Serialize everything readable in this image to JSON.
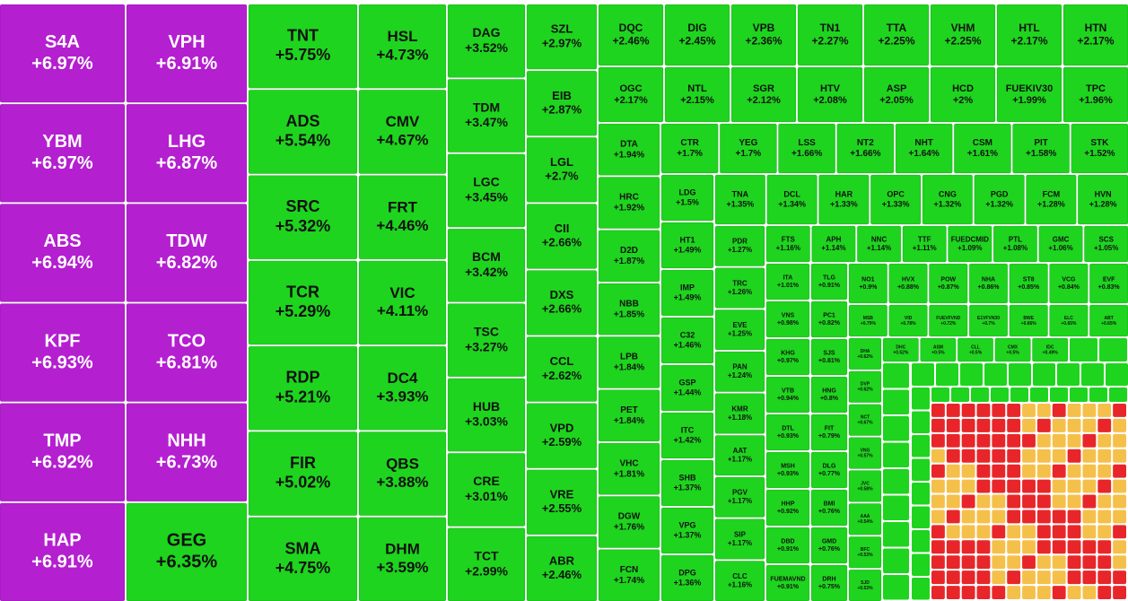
{
  "chart_data": {
    "type": "treemap",
    "series": [
      {
        "color": "#b41fd0",
        "text_color": "#ffffff",
        "categories": [
          "S4A",
          "YBM",
          "ABS",
          "KPF",
          "TMP",
          "HAP",
          "VPH",
          "LHG",
          "TDW",
          "TCO",
          "NHH"
        ],
        "values": [
          6.97,
          6.97,
          6.94,
          6.93,
          6.92,
          6.91,
          6.91,
          6.87,
          6.82,
          6.81,
          6.73
        ],
        "value_labels": [
          "+6.97%",
          "+6.97%",
          "+6.94%",
          "+6.93%",
          "+6.92%",
          "+6.91%",
          "+6.91%",
          "+6.87%",
          "+6.82%",
          "+6.81%",
          "+6.73%"
        ]
      },
      {
        "color": "#1ed41e",
        "text_color": "#111111",
        "categories": [
          "GEG",
          "TNT",
          "ADS",
          "SRC",
          "TCR",
          "RDP",
          "FIR",
          "SMA",
          "HSL",
          "CMV",
          "FRT",
          "VIC",
          "DC4",
          "QBS",
          "DHM",
          "DAG",
          "TDM",
          "LGC",
          "BCM",
          "TSC",
          "HUB",
          "CRE",
          "TCT",
          "SZL",
          "EIB",
          "LGL",
          "CII",
          "DXS",
          "CCL",
          "VPD",
          "VRE",
          "ABR",
          "DQC",
          "DIG",
          "VPB",
          "TN1",
          "TTA",
          "VHM",
          "HTL",
          "HTN",
          "OGC",
          "NTL",
          "SGR",
          "HTV",
          "ASP",
          "HCD",
          "FUEKIV30",
          "TPC",
          "DTA",
          "HRC",
          "D2D",
          "NBB",
          "LPB",
          "PET",
          "VHC",
          "DGW",
          "FCN",
          "CTR",
          "YEG",
          "LSS",
          "NT2",
          "NHT",
          "CSM",
          "PIT",
          "STK",
          "LDG",
          "HT1",
          "IMP",
          "C32",
          "GSP",
          "ITC",
          "SHB",
          "VPG",
          "DPG",
          "TNA",
          "DCL",
          "HAR",
          "OPC",
          "CNG",
          "PGD",
          "FCM",
          "HVN",
          "PDR",
          "TRC",
          "EVE",
          "PAN",
          "KMR",
          "AAT",
          "PGV",
          "SIP",
          "CLC",
          "FTS",
          "APH",
          "NNC",
          "TTF",
          "FUEDCMID",
          "PTL",
          "GMC",
          "SCS",
          "ITA",
          "VNS",
          "KHG",
          "VTB",
          "DTL",
          "MSH",
          "HHP",
          "DBD",
          "FUEMAVND",
          "TLG",
          "PC1",
          "SJS",
          "HNG",
          "FIT",
          "DLG",
          "BMI",
          "GMD",
          "DRH",
          "NO1",
          "HVX",
          "POW",
          "NHA",
          "ST8",
          "VCG",
          "EVF",
          "MSB",
          "VID",
          "FUEVFVND",
          "E1VFVN30",
          "BWE",
          "ELC",
          "ABT",
          "DHA",
          "DVP",
          "NCT",
          "VNG",
          "JVC",
          "AAA",
          "BFC",
          "SJD",
          "DHC",
          "ASM",
          "CLL",
          "CMX",
          "IDC"
        ],
        "values": [
          6.35,
          5.75,
          5.54,
          5.32,
          5.29,
          5.21,
          5.02,
          4.75,
          4.73,
          4.67,
          4.46,
          4.11,
          3.93,
          3.88,
          3.59,
          3.52,
          3.47,
          3.45,
          3.42,
          3.27,
          3.03,
          3.01,
          2.99,
          2.97,
          2.87,
          2.7,
          2.66,
          2.66,
          2.62,
          2.59,
          2.55,
          2.46,
          2.46,
          2.45,
          2.36,
          2.27,
          2.25,
          2.25,
          2.17,
          2.17,
          2.17,
          2.15,
          2.12,
          2.08,
          2.05,
          2,
          1.99,
          1.96,
          1.94,
          1.92,
          1.87,
          1.85,
          1.84,
          1.84,
          1.81,
          1.76,
          1.74,
          1.7,
          1.7,
          1.66,
          1.66,
          1.64,
          1.61,
          1.58,
          1.52,
          1.5,
          1.49,
          1.49,
          1.46,
          1.44,
          1.42,
          1.37,
          1.37,
          1.36,
          1.35,
          1.34,
          1.33,
          1.33,
          1.32,
          1.32,
          1.28,
          1.28,
          1.27,
          1.26,
          1.25,
          1.24,
          1.18,
          1.17,
          1.17,
          1.17,
          1.16,
          1.16,
          1.14,
          1.14,
          1.11,
          1.09,
          1.08,
          1.06,
          1.05,
          1.01,
          0.98,
          0.97,
          0.94,
          0.93,
          0.93,
          0.92,
          0.91,
          0.91,
          0.91,
          0.82,
          0.81,
          0.8,
          0.79,
          0.77,
          0.76,
          0.76,
          0.75,
          0.9,
          0.88,
          0.87,
          0.86,
          0.85,
          0.84,
          0.83,
          0.79,
          0.78,
          0.72,
          0.7,
          0.66,
          0.65,
          0.65,
          0.62,
          0.62,
          0.67,
          0.57,
          0.58,
          0.54,
          0.53,
          0.53,
          0.52,
          0.5,
          0.5,
          0.5,
          0.49
        ],
        "value_labels": [
          "+6.35%",
          "+5.75%",
          "+5.54%",
          "+5.32%",
          "+5.29%",
          "+5.21%",
          "+5.02%",
          "+4.75%",
          "+4.73%",
          "+4.67%",
          "+4.46%",
          "+4.11%",
          "+3.93%",
          "+3.88%",
          "+3.59%",
          "+3.52%",
          "+3.47%",
          "+3.45%",
          "+3.42%",
          "+3.27%",
          "+3.03%",
          "+3.01%",
          "+2.99%",
          "+2.97%",
          "+2.87%",
          "+2.7%",
          "+2.66%",
          "+2.66%",
          "+2.62%",
          "+2.59%",
          "+2.55%",
          "+2.46%",
          "+2.46%",
          "+2.45%",
          "+2.36%",
          "+2.27%",
          "+2.25%",
          "+2.25%",
          "+2.17%",
          "+2.17%",
          "+2.17%",
          "+2.15%",
          "+2.12%",
          "+2.08%",
          "+2.05%",
          "+2%",
          "+1.99%",
          "+1.96%",
          "+1.94%",
          "+1.92%",
          "+1.87%",
          "+1.85%",
          "+1.84%",
          "+1.84%",
          "+1.81%",
          "+1.76%",
          "+1.74%",
          "+1.7%",
          "+1.7%",
          "+1.66%",
          "+1.66%",
          "+1.64%",
          "+1.61%",
          "+1.58%",
          "+1.52%",
          "+1.5%",
          "+1.49%",
          "+1.49%",
          "+1.46%",
          "+1.44%",
          "+1.42%",
          "+1.37%",
          "+1.37%",
          "+1.36%",
          "+1.35%",
          "+1.34%",
          "+1.33%",
          "+1.33%",
          "+1.32%",
          "+1.32%",
          "+1.28%",
          "+1.28%",
          "+1.27%",
          "+1.26%",
          "+1.25%",
          "+1.24%",
          "+1.18%",
          "+1.17%",
          "+1.17%",
          "+1.17%",
          "+1.16%",
          "+1.16%",
          "+1.14%",
          "+1.14%",
          "+1.11%",
          "+1.09%",
          "+1.08%",
          "+1.06%",
          "+1.05%",
          "+1.01%",
          "+0.98%",
          "+0.97%",
          "+0.94%",
          "+0.93%",
          "+0.93%",
          "+0.92%",
          "+0.91%",
          "+0.91%",
          "+0.91%",
          "+0.82%",
          "+0.81%",
          "+0.8%",
          "+0.79%",
          "+0.77%",
          "+0.76%",
          "+0.76%",
          "+0.75%",
          "+0.9%",
          "+0.88%",
          "+0.87%",
          "+0.86%",
          "+0.85%",
          "+0.84%",
          "+0.83%",
          "+0.79%",
          "+0.78%",
          "+0.72%",
          "+0.7%",
          "+0.66%",
          "+0.65%",
          "+0.65%",
          "+0.62%",
          "+0.62%",
          "+0.67%",
          "+0.57%",
          "+0.58%",
          "+0.54%",
          "+0.53%",
          "+0.53%",
          "+0.52%",
          "+0.5%",
          "+0.5%",
          "+0.5%",
          "+0.49%"
        ]
      }
    ]
  }
}
